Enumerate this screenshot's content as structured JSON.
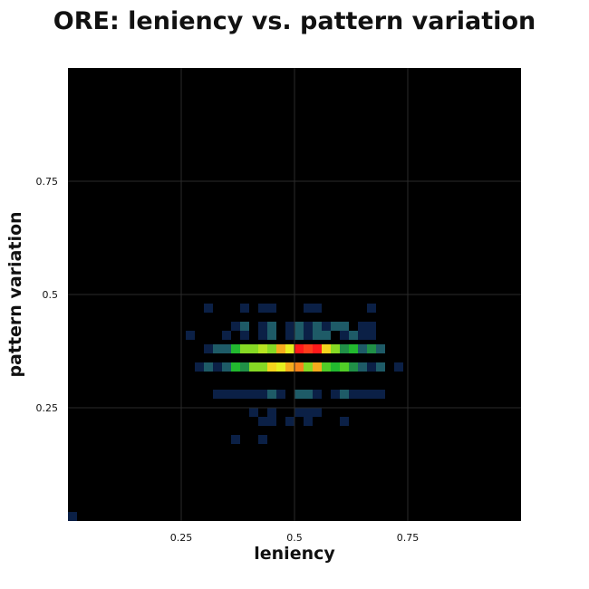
{
  "chart_data": {
    "type": "heatmap",
    "title": "ORE: leniency vs. pattern variation",
    "xlabel": "leniency",
    "ylabel": "pattern variation",
    "xlim": [
      0,
      1
    ],
    "ylim": [
      0,
      1
    ],
    "bins": 50,
    "xticks": [
      0.25,
      0.5,
      0.75
    ],
    "yticks": [
      0.25,
      0.5,
      0.75
    ],
    "xtick_labels": [
      "0.25",
      "0.5",
      "0.75"
    ],
    "ytick_labels": [
      "0.25",
      "0.5",
      "0.75"
    ],
    "grid": true,
    "background": "#000000",
    "colorscale": [
      "#0b2046",
      "#1e4e6e",
      "#22c22a",
      "#f2f21e",
      "#ff1a1a"
    ],
    "cells": [
      {
        "x": 0.0,
        "y": 0.0,
        "v": 1
      },
      {
        "x": 0.3,
        "y": 0.46,
        "v": 1
      },
      {
        "x": 0.38,
        "y": 0.46,
        "v": 1
      },
      {
        "x": 0.42,
        "y": 0.46,
        "v": 1
      },
      {
        "x": 0.44,
        "y": 0.46,
        "v": 1
      },
      {
        "x": 0.52,
        "y": 0.46,
        "v": 1
      },
      {
        "x": 0.54,
        "y": 0.46,
        "v": 1
      },
      {
        "x": 0.66,
        "y": 0.46,
        "v": 1
      },
      {
        "x": 0.36,
        "y": 0.42,
        "v": 1
      },
      {
        "x": 0.38,
        "y": 0.42,
        "v": 2
      },
      {
        "x": 0.42,
        "y": 0.42,
        "v": 1
      },
      {
        "x": 0.44,
        "y": 0.42,
        "v": 2
      },
      {
        "x": 0.48,
        "y": 0.42,
        "v": 1
      },
      {
        "x": 0.5,
        "y": 0.42,
        "v": 2
      },
      {
        "x": 0.52,
        "y": 0.42,
        "v": 1
      },
      {
        "x": 0.54,
        "y": 0.42,
        "v": 2
      },
      {
        "x": 0.56,
        "y": 0.42,
        "v": 1
      },
      {
        "x": 0.58,
        "y": 0.42,
        "v": 2
      },
      {
        "x": 0.6,
        "y": 0.42,
        "v": 2
      },
      {
        "x": 0.64,
        "y": 0.42,
        "v": 1
      },
      {
        "x": 0.66,
        "y": 0.42,
        "v": 1
      },
      {
        "x": 0.26,
        "y": 0.4,
        "v": 1
      },
      {
        "x": 0.34,
        "y": 0.4,
        "v": 1
      },
      {
        "x": 0.38,
        "y": 0.4,
        "v": 1
      },
      {
        "x": 0.42,
        "y": 0.4,
        "v": 1
      },
      {
        "x": 0.44,
        "y": 0.4,
        "v": 2
      },
      {
        "x": 0.48,
        "y": 0.4,
        "v": 1
      },
      {
        "x": 0.5,
        "y": 0.4,
        "v": 2
      },
      {
        "x": 0.52,
        "y": 0.4,
        "v": 1
      },
      {
        "x": 0.54,
        "y": 0.4,
        "v": 2
      },
      {
        "x": 0.56,
        "y": 0.4,
        "v": 2
      },
      {
        "x": 0.6,
        "y": 0.4,
        "v": 1
      },
      {
        "x": 0.62,
        "y": 0.4,
        "v": 2
      },
      {
        "x": 0.64,
        "y": 0.4,
        "v": 1
      },
      {
        "x": 0.66,
        "y": 0.4,
        "v": 1
      },
      {
        "x": 0.3,
        "y": 0.37,
        "v": 1
      },
      {
        "x": 0.32,
        "y": 0.37,
        "v": 2
      },
      {
        "x": 0.34,
        "y": 0.37,
        "v": 2
      },
      {
        "x": 0.36,
        "y": 0.37,
        "v": 4
      },
      {
        "x": 0.38,
        "y": 0.37,
        "v": 6
      },
      {
        "x": 0.4,
        "y": 0.37,
        "v": 6
      },
      {
        "x": 0.42,
        "y": 0.37,
        "v": 7
      },
      {
        "x": 0.44,
        "y": 0.37,
        "v": 6
      },
      {
        "x": 0.46,
        "y": 0.37,
        "v": 10
      },
      {
        "x": 0.48,
        "y": 0.37,
        "v": 8
      },
      {
        "x": 0.5,
        "y": 0.37,
        "v": 14
      },
      {
        "x": 0.52,
        "y": 0.37,
        "v": 13
      },
      {
        "x": 0.54,
        "y": 0.37,
        "v": 14
      },
      {
        "x": 0.56,
        "y": 0.37,
        "v": 9
      },
      {
        "x": 0.58,
        "y": 0.37,
        "v": 6
      },
      {
        "x": 0.6,
        "y": 0.37,
        "v": 3
      },
      {
        "x": 0.62,
        "y": 0.37,
        "v": 4
      },
      {
        "x": 0.64,
        "y": 0.37,
        "v": 2
      },
      {
        "x": 0.66,
        "y": 0.37,
        "v": 3
      },
      {
        "x": 0.68,
        "y": 0.37,
        "v": 2
      },
      {
        "x": 0.28,
        "y": 0.33,
        "v": 1
      },
      {
        "x": 0.3,
        "y": 0.33,
        "v": 2
      },
      {
        "x": 0.32,
        "y": 0.33,
        "v": 1
      },
      {
        "x": 0.34,
        "y": 0.33,
        "v": 2
      },
      {
        "x": 0.36,
        "y": 0.33,
        "v": 4
      },
      {
        "x": 0.38,
        "y": 0.33,
        "v": 3
      },
      {
        "x": 0.4,
        "y": 0.33,
        "v": 6
      },
      {
        "x": 0.42,
        "y": 0.33,
        "v": 6
      },
      {
        "x": 0.44,
        "y": 0.33,
        "v": 9
      },
      {
        "x": 0.46,
        "y": 0.33,
        "v": 8
      },
      {
        "x": 0.48,
        "y": 0.33,
        "v": 10
      },
      {
        "x": 0.5,
        "y": 0.33,
        "v": 11
      },
      {
        "x": 0.52,
        "y": 0.33,
        "v": 6
      },
      {
        "x": 0.54,
        "y": 0.33,
        "v": 10
      },
      {
        "x": 0.56,
        "y": 0.33,
        "v": 5
      },
      {
        "x": 0.58,
        "y": 0.33,
        "v": 4
      },
      {
        "x": 0.6,
        "y": 0.33,
        "v": 5
      },
      {
        "x": 0.62,
        "y": 0.33,
        "v": 3
      },
      {
        "x": 0.64,
        "y": 0.33,
        "v": 2
      },
      {
        "x": 0.66,
        "y": 0.33,
        "v": 1
      },
      {
        "x": 0.68,
        "y": 0.33,
        "v": 2
      },
      {
        "x": 0.72,
        "y": 0.33,
        "v": 1
      },
      {
        "x": 0.32,
        "y": 0.27,
        "v": 1
      },
      {
        "x": 0.34,
        "y": 0.27,
        "v": 1
      },
      {
        "x": 0.36,
        "y": 0.27,
        "v": 1
      },
      {
        "x": 0.38,
        "y": 0.27,
        "v": 1
      },
      {
        "x": 0.4,
        "y": 0.27,
        "v": 1
      },
      {
        "x": 0.42,
        "y": 0.27,
        "v": 1
      },
      {
        "x": 0.44,
        "y": 0.27,
        "v": 2
      },
      {
        "x": 0.46,
        "y": 0.27,
        "v": 1
      },
      {
        "x": 0.5,
        "y": 0.27,
        "v": 2
      },
      {
        "x": 0.52,
        "y": 0.27,
        "v": 2
      },
      {
        "x": 0.54,
        "y": 0.27,
        "v": 1
      },
      {
        "x": 0.58,
        "y": 0.27,
        "v": 1
      },
      {
        "x": 0.6,
        "y": 0.27,
        "v": 2
      },
      {
        "x": 0.62,
        "y": 0.27,
        "v": 1
      },
      {
        "x": 0.64,
        "y": 0.27,
        "v": 1
      },
      {
        "x": 0.66,
        "y": 0.27,
        "v": 1
      },
      {
        "x": 0.68,
        "y": 0.27,
        "v": 1
      },
      {
        "x": 0.4,
        "y": 0.23,
        "v": 1
      },
      {
        "x": 0.44,
        "y": 0.23,
        "v": 1
      },
      {
        "x": 0.5,
        "y": 0.23,
        "v": 1
      },
      {
        "x": 0.52,
        "y": 0.23,
        "v": 1
      },
      {
        "x": 0.54,
        "y": 0.23,
        "v": 1
      },
      {
        "x": 0.42,
        "y": 0.21,
        "v": 1
      },
      {
        "x": 0.44,
        "y": 0.21,
        "v": 1
      },
      {
        "x": 0.48,
        "y": 0.21,
        "v": 1
      },
      {
        "x": 0.52,
        "y": 0.21,
        "v": 1
      },
      {
        "x": 0.6,
        "y": 0.21,
        "v": 1
      },
      {
        "x": 0.36,
        "y": 0.17,
        "v": 1
      },
      {
        "x": 0.42,
        "y": 0.17,
        "v": 1
      }
    ]
  }
}
